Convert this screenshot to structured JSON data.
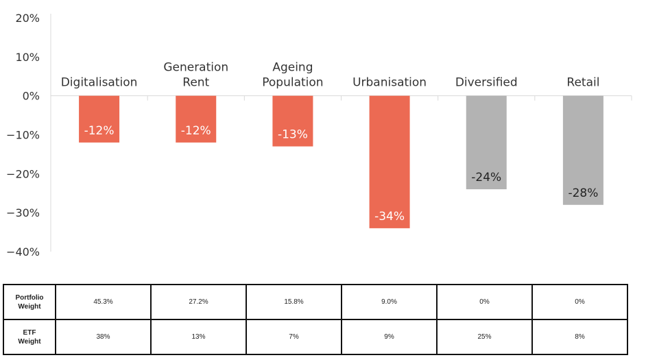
{
  "chart_data": {
    "type": "bar",
    "categories": [
      [
        "Digitalisation"
      ],
      [
        "Generation",
        "Rent"
      ],
      [
        "Ageing",
        "Population"
      ],
      [
        "Urbanisation"
      ],
      [
        "Diversified"
      ],
      [
        "Retail"
      ]
    ],
    "values": [
      -12,
      -12,
      -13,
      -34,
      -24,
      -28
    ],
    "data_labels": [
      "-12%",
      "-12%",
      "-13%",
      "-34%",
      "-24%",
      "-28%"
    ],
    "bar_colors": [
      "#ec6a53",
      "#ec6a53",
      "#ec6a53",
      "#ec6a53",
      "#b3b3b3",
      "#b3b3b3"
    ],
    "data_label_colors": [
      "#ffffff",
      "#ffffff",
      "#ffffff",
      "#ffffff",
      "#222222",
      "#222222"
    ],
    "ylim": [
      -40,
      20
    ],
    "yticks": [
      20,
      10,
      0,
      -10,
      -20,
      -30,
      -40
    ],
    "ytick_labels": [
      "20%",
      "10%",
      "0%",
      "−10%",
      "−20%",
      "−30%",
      "−40%"
    ],
    "grid": false,
    "title": "",
    "xlabel": "",
    "ylabel": ""
  },
  "table": {
    "rows": [
      {
        "label": [
          "Portfolio",
          "Weight"
        ],
        "values": [
          "45.3%",
          "27.2%",
          "15.8%",
          "9.0%",
          "0%",
          "0%"
        ]
      },
      {
        "label": [
          "ETF",
          "Weight"
        ],
        "values": [
          "38%",
          "13%",
          "7%",
          "9%",
          "25%",
          "8%"
        ]
      }
    ]
  }
}
